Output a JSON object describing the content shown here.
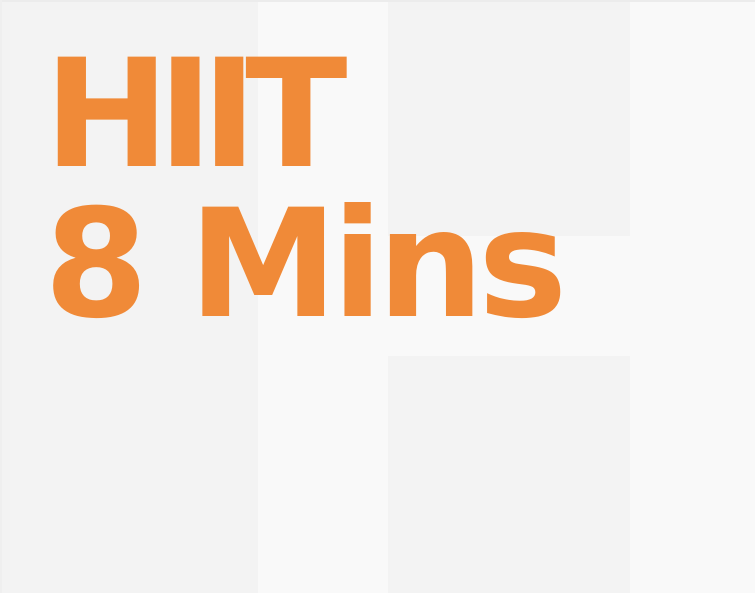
{
  "headline": {
    "line1": "HIIT",
    "line2": "8 Mins"
  },
  "colors": {
    "accent": "#f08a38",
    "background": "#f9f9f9",
    "panel": "#f3f3f3"
  }
}
